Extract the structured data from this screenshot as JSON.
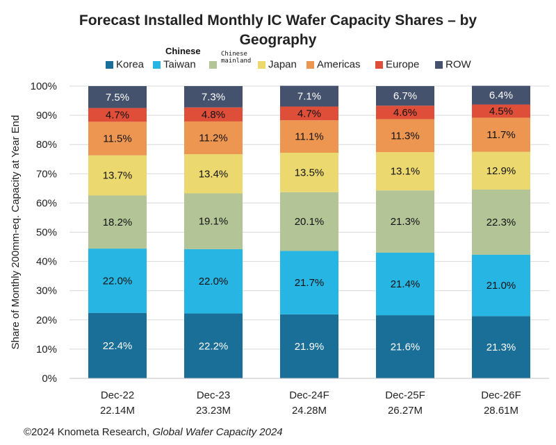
{
  "title_line1": "Forecast Installed Monthly IC Wafer Capacity Shares – by",
  "title_line2": "Geography",
  "legend_overlay_chinese": "Chinese",
  "legend_overlay_mainland": "Chinese\nmainland",
  "source_prefix": "©2024 Knometa Research, ",
  "source_italic": "Global Wafer Capacity 2024",
  "chart_data": {
    "type": "bar",
    "stacked": true,
    "title": "Forecast Installed Monthly IC Wafer Capacity Shares – by Geography",
    "ylabel": "Share of Monthly 200mm-eq. Capacity at Year End",
    "ylim": [
      0,
      100
    ],
    "yticks": [
      "0%",
      "10%",
      "20%",
      "30%",
      "40%",
      "50%",
      "60%",
      "70%",
      "80%",
      "90%",
      "100%"
    ],
    "grid": true,
    "legend_position": "top",
    "categories": [
      "Dec-22",
      "Dec-23",
      "Dec-24F",
      "Dec-25F",
      "Dec-26F"
    ],
    "category_sublabels": [
      "22.14M",
      "23.23M",
      "24.28M",
      "26.27M",
      "28.61M"
    ],
    "series": [
      {
        "name": "Korea",
        "color": "#1a6f98",
        "label_color": "#ffffff",
        "values": [
          22.4,
          22.2,
          21.9,
          21.6,
          21.3
        ]
      },
      {
        "name": "Taiwan",
        "color": "#27b5e3",
        "label_color": "#111111",
        "values": [
          22.0,
          22.0,
          21.7,
          21.4,
          21.0
        ]
      },
      {
        "name": "",
        "color": "#b3c596",
        "label_color": "#111111",
        "values": [
          18.2,
          19.1,
          20.1,
          21.3,
          22.3
        ]
      },
      {
        "name": "Japan",
        "color": "#ebd86e",
        "label_color": "#111111",
        "values": [
          13.7,
          13.4,
          13.5,
          13.1,
          12.9
        ]
      },
      {
        "name": "Americas",
        "color": "#ec9651",
        "label_color": "#111111",
        "values": [
          11.5,
          11.2,
          11.1,
          11.3,
          11.7
        ]
      },
      {
        "name": "Europe",
        "color": "#df4e38",
        "label_color": "#111111",
        "values": [
          4.7,
          4.8,
          4.7,
          4.6,
          4.5
        ]
      },
      {
        "name": "ROW",
        "color": "#44526e",
        "label_color": "#ffffff",
        "values": [
          7.5,
          7.3,
          7.1,
          6.7,
          6.4
        ]
      }
    ]
  }
}
